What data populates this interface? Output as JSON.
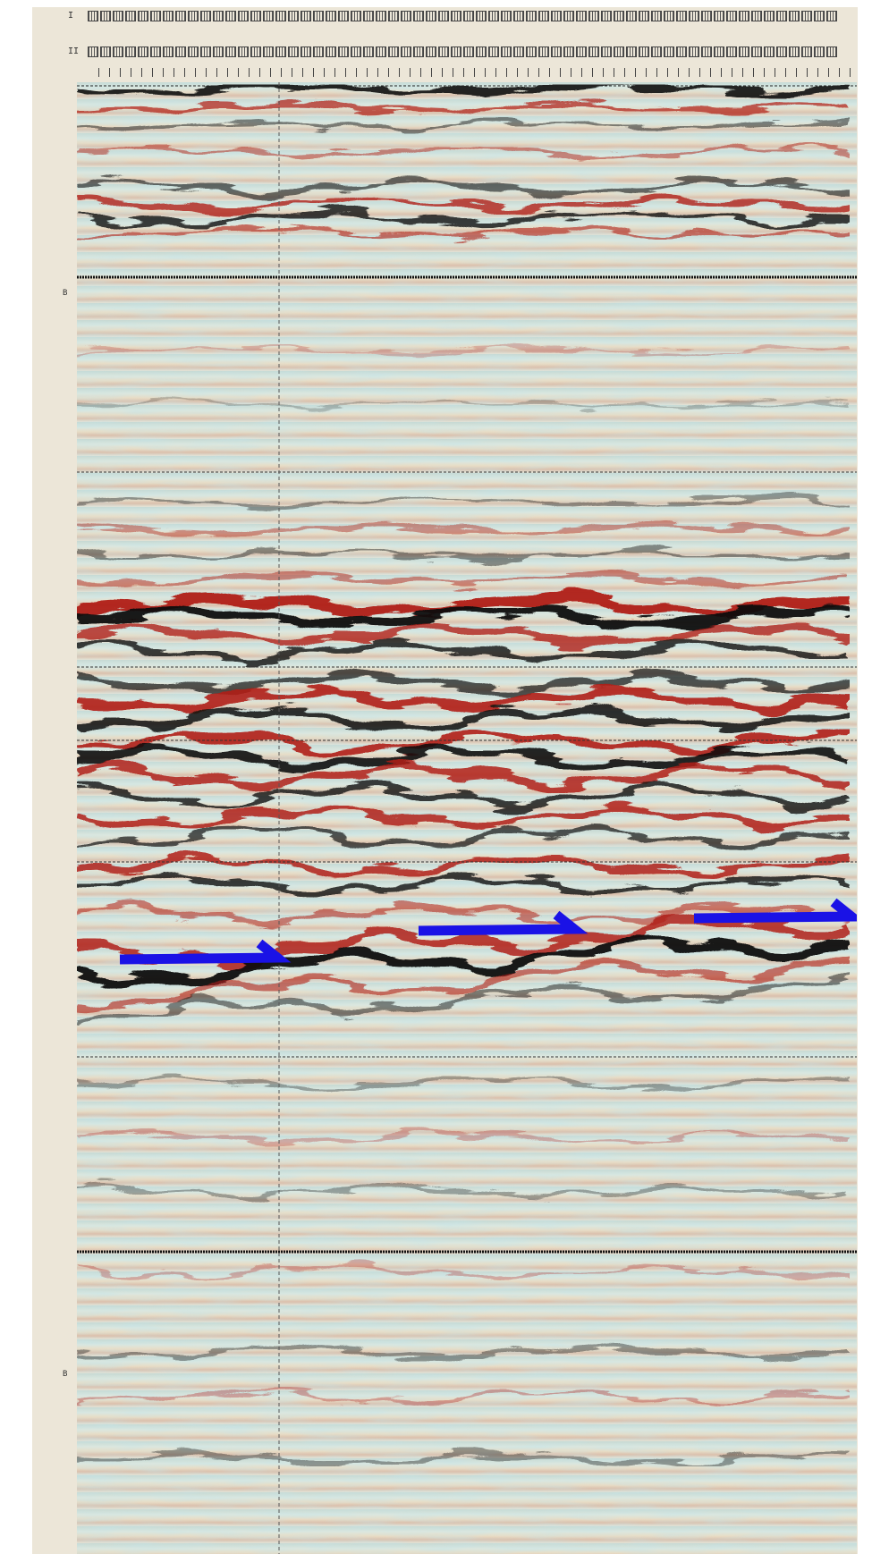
{
  "window": {
    "header_row_1_tag": "I",
    "header_row_2_tag": "II",
    "side_marker_upper": "B",
    "side_marker_lower": "B"
  },
  "seismic_section": {
    "description_label": "",
    "colors": {
      "positive": "#b01e16",
      "negative": "#111111",
      "neutral_warm": "#e8dcc2",
      "neutral_cool": "#cfe6ea",
      "annotation_arrow": "#1a12e6"
    },
    "annotations": [
      {
        "name": "arrow-left"
      },
      {
        "name": "arrow-middle"
      },
      {
        "name": "arrow-right"
      }
    ]
  }
}
